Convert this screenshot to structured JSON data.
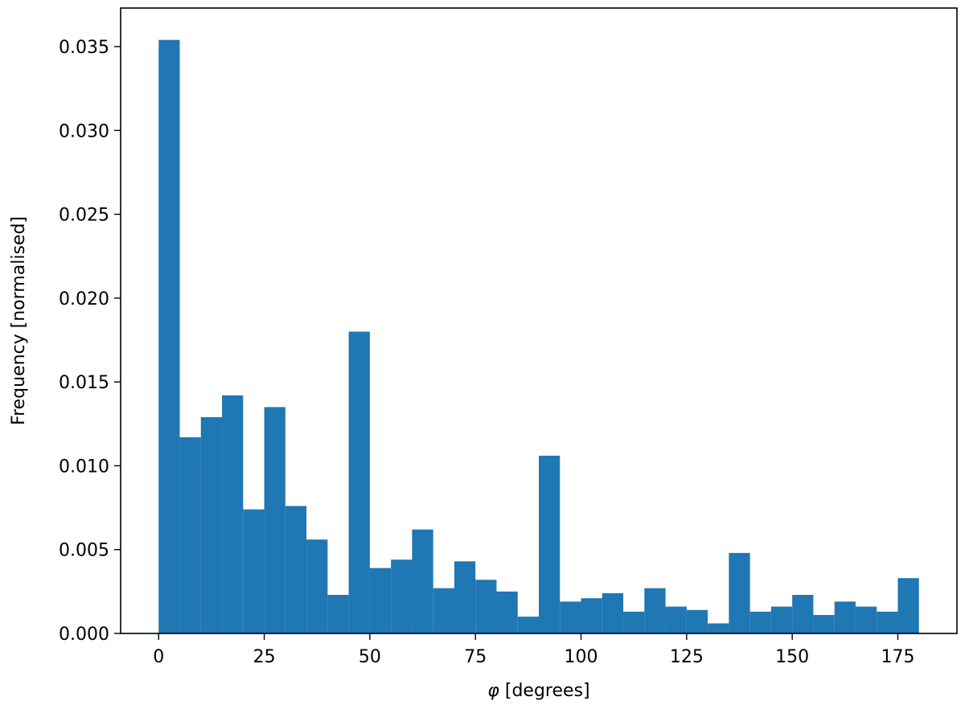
{
  "chart_data": {
    "type": "bar",
    "title": "",
    "xlabel_symbol": "φ",
    "xlabel_rest": " [degrees]",
    "ylabel": "Frequency [normalised]",
    "xlim": [
      -9,
      189
    ],
    "ylim": [
      0,
      0.0373
    ],
    "bin_width": 5,
    "grid": false,
    "bar_color": "#1f77b4",
    "x_ticks": [
      {
        "value": 0,
        "label": "0"
      },
      {
        "value": 25,
        "label": "25"
      },
      {
        "value": 50,
        "label": "50"
      },
      {
        "value": 75,
        "label": "75"
      },
      {
        "value": 100,
        "label": "100"
      },
      {
        "value": 125,
        "label": "125"
      },
      {
        "value": 150,
        "label": "150"
      },
      {
        "value": 175,
        "label": "175"
      }
    ],
    "y_ticks": [
      {
        "value": 0.0,
        "label": "0.000"
      },
      {
        "value": 0.005,
        "label": "0.005"
      },
      {
        "value": 0.01,
        "label": "0.010"
      },
      {
        "value": 0.015,
        "label": "0.015"
      },
      {
        "value": 0.02,
        "label": "0.020"
      },
      {
        "value": 0.025,
        "label": "0.025"
      },
      {
        "value": 0.03,
        "label": "0.030"
      },
      {
        "value": 0.035,
        "label": "0.035"
      }
    ],
    "bins": [
      {
        "start": 0,
        "value": 0.0354
      },
      {
        "start": 5,
        "value": 0.0117
      },
      {
        "start": 10,
        "value": 0.0129
      },
      {
        "start": 15,
        "value": 0.0142
      },
      {
        "start": 20,
        "value": 0.0074
      },
      {
        "start": 25,
        "value": 0.0135
      },
      {
        "start": 30,
        "value": 0.0076
      },
      {
        "start": 35,
        "value": 0.0056
      },
      {
        "start": 40,
        "value": 0.0023
      },
      {
        "start": 45,
        "value": 0.018
      },
      {
        "start": 50,
        "value": 0.0039
      },
      {
        "start": 55,
        "value": 0.0044
      },
      {
        "start": 60,
        "value": 0.0062
      },
      {
        "start": 65,
        "value": 0.0027
      },
      {
        "start": 70,
        "value": 0.0043
      },
      {
        "start": 75,
        "value": 0.0032
      },
      {
        "start": 80,
        "value": 0.0025
      },
      {
        "start": 85,
        "value": 0.001
      },
      {
        "start": 90,
        "value": 0.0106
      },
      {
        "start": 95,
        "value": 0.0019
      },
      {
        "start": 100,
        "value": 0.0021
      },
      {
        "start": 105,
        "value": 0.0024
      },
      {
        "start": 110,
        "value": 0.0013
      },
      {
        "start": 115,
        "value": 0.0027
      },
      {
        "start": 120,
        "value": 0.0016
      },
      {
        "start": 125,
        "value": 0.0014
      },
      {
        "start": 130,
        "value": 0.0006
      },
      {
        "start": 135,
        "value": 0.0048
      },
      {
        "start": 140,
        "value": 0.0013
      },
      {
        "start": 145,
        "value": 0.0016
      },
      {
        "start": 150,
        "value": 0.0023
      },
      {
        "start": 155,
        "value": 0.0011
      },
      {
        "start": 160,
        "value": 0.0019
      },
      {
        "start": 165,
        "value": 0.0016
      },
      {
        "start": 170,
        "value": 0.0013
      },
      {
        "start": 175,
        "value": 0.0033
      }
    ]
  }
}
